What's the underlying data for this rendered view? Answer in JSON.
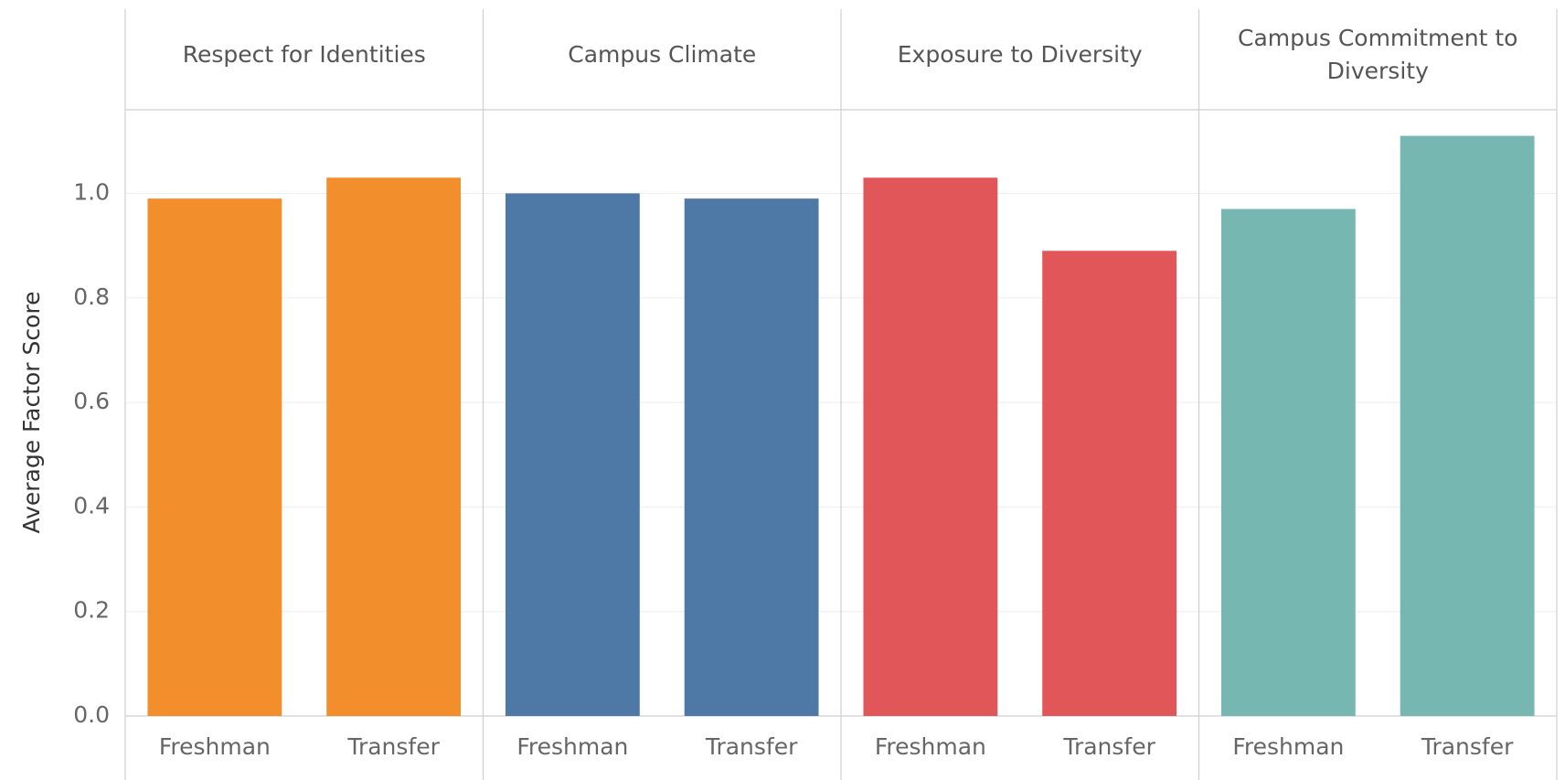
{
  "chart_data": {
    "type": "bar",
    "ylabel": "Average Factor Score",
    "ylim": [
      0,
      1.16
    ],
    "yticks": [
      {
        "value": 0,
        "label": "0.0"
      },
      0.2,
      0.4,
      0.6,
      0.8,
      {
        "value": 1,
        "label": "1.0"
      }
    ],
    "grid": true,
    "facets": [
      {
        "title": "Respect for Identities",
        "color": "#f28e2b",
        "categories": [
          "Freshman",
          "Transfer"
        ],
        "values": [
          0.99,
          1.03
        ]
      },
      {
        "title": "Campus Climate",
        "color": "#4e79a7",
        "categories": [
          "Freshman",
          "Transfer"
        ],
        "values": [
          1.0,
          0.99
        ]
      },
      {
        "title": "Exposure to Diversity",
        "color": "#e15759",
        "categories": [
          "Freshman",
          "Transfer"
        ],
        "values": [
          1.03,
          0.89
        ]
      },
      {
        "title": "Campus Commitment to Diversity",
        "color": "#76b7b2",
        "categories": [
          "Freshman",
          "Transfer"
        ],
        "values": [
          0.97,
          1.11
        ]
      }
    ]
  }
}
